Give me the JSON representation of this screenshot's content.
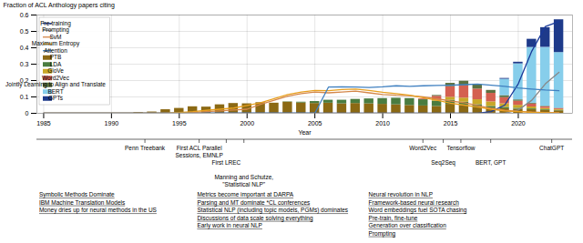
{
  "chart_data": {
    "type": "bar",
    "stacked": true,
    "xlabel": "Year",
    "ylabel": "Fraction of ACL Anthology papers citing",
    "x": [
      1985,
      1986,
      1987,
      1988,
      1989,
      1990,
      1991,
      1992,
      1993,
      1994,
      1995,
      1996,
      1997,
      1998,
      1999,
      2000,
      2001,
      2002,
      2003,
      2004,
      2005,
      2006,
      2007,
      2008,
      2009,
      2010,
      2011,
      2012,
      2013,
      2014,
      2015,
      2016,
      2017,
      2018,
      2019,
      2020,
      2021,
      2022,
      2023
    ],
    "xlim": [
      1984.5,
      2024.0
    ],
    "xticks": [
      1985,
      1990,
      1995,
      2000,
      2005,
      2010,
      2015,
      2020
    ],
    "ylim": [
      0,
      0.6
    ],
    "yticks": [
      0,
      0.1,
      0.2,
      0.3,
      0.4,
      0.5,
      0.6
    ],
    "grid": true,
    "legend": "upper left",
    "series": [
      {
        "name": "PTB",
        "type": "bar",
        "color": "#8B6914",
        "values": [
          0.0,
          0.0,
          0.0,
          0.0,
          0.0,
          0.0,
          0.0,
          0.005,
          0.008,
          0.022,
          0.03,
          0.04,
          0.038,
          0.052,
          0.06,
          0.058,
          0.065,
          0.062,
          0.068,
          0.063,
          0.06,
          0.062,
          0.058,
          0.06,
          0.058,
          0.055,
          0.052,
          0.048,
          0.045,
          0.042,
          0.055,
          0.048,
          0.038,
          0.032,
          0.028,
          0.025,
          0.022,
          0.018,
          0.015
        ]
      },
      {
        "name": "LDA",
        "type": "bar",
        "color": "#4A7C40",
        "values": [
          0.0,
          0.0,
          0.0,
          0.0,
          0.0,
          0.0,
          0.0,
          0.0,
          0.0,
          0.0,
          0.0,
          0.0,
          0.0,
          0.0,
          0.0,
          0.0,
          0.0,
          0.0,
          0.002,
          0.005,
          0.012,
          0.018,
          0.022,
          0.025,
          0.03,
          0.035,
          0.04,
          0.042,
          0.038,
          0.032,
          0.025,
          0.02,
          0.015,
          0.01,
          0.008,
          0.006,
          0.005,
          0.004,
          0.003
        ]
      },
      {
        "name": "GloVe",
        "type": "bar",
        "color": "#C8A828",
        "values": [
          0.0,
          0.0,
          0.0,
          0.0,
          0.0,
          0.0,
          0.0,
          0.0,
          0.0,
          0.0,
          0.0,
          0.0,
          0.0,
          0.0,
          0.0,
          0.0,
          0.0,
          0.0,
          0.0,
          0.0,
          0.0,
          0.0,
          0.0,
          0.0,
          0.0,
          0.0,
          0.0,
          0.0,
          0.0,
          0.005,
          0.018,
          0.025,
          0.03,
          0.028,
          0.022,
          0.018,
          0.012,
          0.008,
          0.005
        ]
      },
      {
        "name": "Word2Vec",
        "type": "bar",
        "color": "#D46050",
        "values": [
          0.0,
          0.0,
          0.0,
          0.0,
          0.0,
          0.0,
          0.0,
          0.0,
          0.0,
          0.0,
          0.0,
          0.0,
          0.0,
          0.0,
          0.0,
          0.0,
          0.0,
          0.0,
          0.0,
          0.0,
          0.0,
          0.0,
          0.0,
          0.0,
          0.0,
          0.0,
          0.0,
          0.0,
          0.005,
          0.025,
          0.065,
          0.075,
          0.065,
          0.052,
          0.038,
          0.025,
          0.018,
          0.01,
          0.006
        ]
      },
      {
        "name": "Jointly Learning to Align and Translate",
        "type": "bar",
        "color": "#5A7040",
        "values": [
          0.0,
          0.0,
          0.0,
          0.0,
          0.0,
          0.0,
          0.0,
          0.0,
          0.0,
          0.0,
          0.0,
          0.0,
          0.0,
          0.0,
          0.0,
          0.0,
          0.0,
          0.0,
          0.0,
          0.0,
          0.0,
          0.0,
          0.0,
          0.0,
          0.0,
          0.0,
          0.0,
          0.0,
          0.0,
          0.005,
          0.02,
          0.028,
          0.025,
          0.018,
          0.012,
          0.008,
          0.005,
          0.003,
          0.002
        ]
      },
      {
        "name": "BERT",
        "type": "bar",
        "color": "#87CEEB",
        "values": [
          0.0,
          0.0,
          0.0,
          0.0,
          0.0,
          0.0,
          0.0,
          0.0,
          0.0,
          0.0,
          0.0,
          0.0,
          0.0,
          0.0,
          0.0,
          0.0,
          0.0,
          0.0,
          0.0,
          0.0,
          0.0,
          0.0,
          0.0,
          0.0,
          0.0,
          0.0,
          0.0,
          0.0,
          0.0,
          0.0,
          0.0,
          0.0,
          0.0,
          0.0,
          0.1,
          0.22,
          0.34,
          0.36,
          0.34
        ]
      },
      {
        "name": "GPTs",
        "type": "bar",
        "color": "#1E3A8A",
        "values": [
          0.0,
          0.0,
          0.0,
          0.0,
          0.0,
          0.0,
          0.0,
          0.0,
          0.0,
          0.0,
          0.0,
          0.0,
          0.0,
          0.0,
          0.0,
          0.0,
          0.0,
          0.0,
          0.0,
          0.0,
          0.0,
          0.0,
          0.0,
          0.0,
          0.0,
          0.0,
          0.0,
          0.0,
          0.0,
          0.0,
          0.0,
          0.0,
          0.0,
          0.0,
          0.005,
          0.01,
          0.05,
          0.12,
          0.2
        ]
      },
      {
        "name": "Pre-training",
        "type": "line",
        "color": "#1A3A9A",
        "values": [
          0.0,
          0.0,
          0.0,
          0.0,
          0.0,
          0.0,
          0.0,
          0.0,
          0.0,
          0.0,
          0.0,
          0.0,
          0.0,
          0.0,
          0.0,
          0.0,
          0.0,
          0.0,
          0.0,
          0.0,
          0.0,
          0.0,
          0.0,
          0.0,
          0.0,
          0.0,
          0.0,
          0.0,
          0.0,
          0.0,
          0.0,
          0.0,
          0.0,
          0.01,
          0.05,
          0.18,
          0.38,
          0.53,
          0.56
        ]
      },
      {
        "name": "Prompting",
        "type": "line",
        "color": "#888888",
        "values": [
          0.0,
          0.0,
          0.0,
          0.0,
          0.0,
          0.0,
          0.0,
          0.0,
          0.0,
          0.0,
          0.0,
          0.0,
          0.0,
          0.0,
          0.0,
          0.0,
          0.0,
          0.0,
          0.0,
          0.0,
          0.0,
          0.0,
          0.0,
          0.0,
          0.0,
          0.0,
          0.0,
          0.0,
          0.0,
          0.0,
          0.0,
          0.0,
          0.0,
          0.0,
          0.0,
          0.02,
          0.08,
          0.18,
          0.25
        ]
      },
      {
        "name": "SvM",
        "type": "line",
        "color": "#D4874A",
        "values": [
          0.0,
          0.0,
          0.0,
          0.0,
          0.0,
          0.0,
          0.0,
          0.0,
          0.0,
          0.0,
          0.0,
          0.005,
          0.01,
          0.015,
          0.02,
          0.025,
          0.055,
          0.08,
          0.105,
          0.12,
          0.13,
          0.125,
          0.13,
          0.135,
          0.125,
          0.115,
          0.11,
          0.108,
          0.1,
          0.09,
          0.075,
          0.065,
          0.048,
          0.03,
          0.018,
          0.012,
          0.008,
          0.005,
          0.003
        ]
      },
      {
        "name": "Maximum Entropy",
        "type": "line",
        "color": "#E8A020",
        "values": [
          0.0,
          0.0,
          0.0,
          0.0,
          0.0,
          0.0,
          0.0,
          0.0,
          0.0,
          0.0,
          0.005,
          0.01,
          0.018,
          0.025,
          0.032,
          0.048,
          0.065,
          0.09,
          0.115,
          0.13,
          0.14,
          0.138,
          0.145,
          0.148,
          0.14,
          0.128,
          0.12,
          0.11,
          0.095,
          0.08,
          0.062,
          0.05,
          0.038,
          0.025,
          0.015,
          0.01,
          0.006,
          0.004,
          0.002
        ]
      },
      {
        "name": "Attention",
        "type": "line",
        "color": "#4080C0",
        "values": [
          0.0,
          0.0,
          0.0,
          0.0,
          0.0,
          0.0,
          0.0,
          0.0,
          0.0,
          0.0,
          0.0,
          0.0,
          0.0,
          0.0,
          0.0,
          0.0,
          0.0,
          0.0,
          0.0,
          0.0,
          0.0,
          0.16,
          0.162,
          0.16,
          0.158,
          0.162,
          0.168,
          0.165,
          0.168,
          0.17,
          0.172,
          0.175,
          0.178,
          0.172,
          0.165,
          0.155,
          0.148,
          0.142,
          0.138
        ]
      }
    ],
    "annotations": [
      {
        "x": 1992.5,
        "text": "Penn Treebank"
      },
      {
        "x": 1996.5,
        "text": "First ACL Parallel\nSessions, EMNLP"
      },
      {
        "x": 1998.5,
        "text": "First LREC"
      },
      {
        "x": 1999.8,
        "text": "Manning and Schutze,\n\"Statistical NLP\""
      },
      {
        "x": 2013.0,
        "text": "Word2Vec"
      },
      {
        "x": 2014.5,
        "text": "Seq2Seq"
      },
      {
        "x": 2015.8,
        "text": "Tensorflow"
      },
      {
        "x": 2018.0,
        "text": "BERT, GPT"
      },
      {
        "x": 2022.5,
        "text": "ChatGPT"
      },
      {
        "text": "Symbolic Methods Dominate"
      },
      {
        "text": "IBM Machine Translation Models"
      },
      {
        "text": "Money dries up for neural methods in the US"
      },
      {
        "text": "Metrics become important at DARPA"
      },
      {
        "text": "Parsing and MT dominate *CL conferences"
      },
      {
        "text": "Statistical NLP (including topic models, PGMs) dominates"
      },
      {
        "text": "Discussions of data scale solving everything"
      },
      {
        "text": "Early work in neural NLP"
      },
      {
        "text": "Neural revolution in NLP"
      },
      {
        "text": "Framework-based neural research"
      },
      {
        "text": "Word embeddings fuel SOTA chasing"
      },
      {
        "text": "Pre-train, fine-tune"
      },
      {
        "text": "Generation over classification"
      },
      {
        "text": "Prompting"
      }
    ]
  }
}
